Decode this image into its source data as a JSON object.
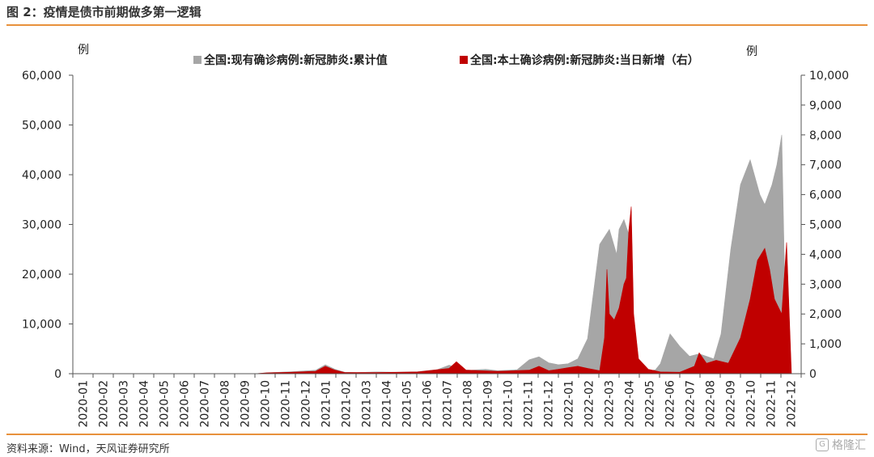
{
  "figure": {
    "title": "图 2：疫情是债市前期做多第一逻辑",
    "source": "资料来源：Wind，天风证券研究所",
    "watermark": "格隆汇"
  },
  "chart_data": {
    "type": "area",
    "xlabel": "",
    "ylabel_left": "例",
    "ylabel_right": "例",
    "ylim_left": [
      0,
      60000
    ],
    "ylim_right": [
      0,
      10000
    ],
    "yticks_left": [
      "0",
      "10,000",
      "20,000",
      "30,000",
      "40,000",
      "50,000",
      "60,000"
    ],
    "yticks_right": [
      "0",
      "1,000",
      "2,000",
      "3,000",
      "4,000",
      "5,000",
      "6,000",
      "7,000",
      "8,000",
      "9,000",
      "10,000"
    ],
    "grid": false,
    "legend_position": "top",
    "categories": [
      "2020-01",
      "2020-02",
      "2020-03",
      "2020-04",
      "2020-05",
      "2020-06",
      "2020-07",
      "2020-08",
      "2020-09",
      "2020-10",
      "2020-11",
      "2020-12",
      "2021-01",
      "2021-02",
      "2021-03",
      "2021-04",
      "2021-05",
      "2021-06",
      "2021-07",
      "2021-08",
      "2021-09",
      "2021-10",
      "2021-11",
      "2021-12",
      "2022-01",
      "2022-02",
      "2022-03",
      "2022-04",
      "2022-05",
      "2022-06",
      "2022-07",
      "2022-08",
      "2022-09",
      "2022-10",
      "2022-11",
      "2022-12"
    ],
    "series": [
      {
        "name": "全国:现有确诊病例:新冠肺炎:累计值",
        "axis": "left",
        "color": "#a6a6a6",
        "x": [
          2020.0,
          2020.75,
          2020.8,
          2020.9,
          2021.0,
          2021.04,
          2021.08,
          2021.12,
          2021.17,
          2021.25,
          2021.33,
          2021.42,
          2021.5,
          2021.55,
          2021.6,
          2021.64,
          2021.7,
          2021.75,
          2021.83,
          2021.88,
          2021.92,
          2021.96,
          2022.0,
          2022.04,
          2022.08,
          2022.12,
          2022.17,
          2022.21,
          2022.24,
          2022.25,
          2022.27,
          2022.29,
          2022.31,
          2022.33,
          2022.35,
          2022.37,
          2022.38,
          2022.4,
          2022.42,
          2022.46,
          2022.5,
          2022.54,
          2022.58,
          2022.61,
          2022.64,
          2022.67,
          2022.71,
          2022.75,
          2022.79,
          2022.83,
          2022.85,
          2022.88,
          2022.9,
          2022.92,
          2022.94,
          2022.96,
          2022.975,
          2022.99
        ],
        "values": [
          0,
          0,
          200,
          400,
          700,
          1800,
          900,
          300,
          250,
          350,
          300,
          400,
          800,
          1700,
          800,
          700,
          900,
          600,
          800,
          2800,
          3400,
          2200,
          1800,
          2000,
          3000,
          7000,
          26000,
          29000,
          24000,
          29000,
          31000,
          28000,
          8000,
          3000,
          900,
          700,
          600,
          800,
          2000,
          8000,
          5500,
          3500,
          4000,
          3500,
          3000,
          8000,
          25000,
          38000,
          43000,
          36000,
          34000,
          38000,
          42000,
          48000,
          0,
          0,
          0,
          0
        ]
      },
      {
        "name": "全国:本土确诊病例:新冠肺炎:当日新增（右）",
        "axis": "right",
        "color": "#c00000",
        "x": [
          2020.0,
          2020.75,
          2020.8,
          2020.9,
          2021.0,
          2021.04,
          2021.08,
          2021.12,
          2021.25,
          2021.42,
          2021.55,
          2021.58,
          2021.62,
          2021.75,
          2021.88,
          2021.92,
          2021.96,
          2022.0,
          2022.04,
          2022.08,
          2022.12,
          2022.17,
          2022.19,
          2022.2,
          2022.21,
          2022.23,
          2022.25,
          2022.27,
          2022.28,
          2022.29,
          2022.3,
          2022.31,
          2022.33,
          2022.37,
          2022.42,
          2022.5,
          2022.56,
          2022.58,
          2022.61,
          2022.65,
          2022.7,
          2022.75,
          2022.79,
          2022.82,
          2022.85,
          2022.87,
          2022.89,
          2022.92,
          2022.94,
          2022.96,
          2022.97,
          2022.98,
          2022.99
        ],
        "values": [
          0,
          0,
          30,
          50,
          80,
          250,
          120,
          40,
          40,
          60,
          180,
          400,
          120,
          80,
          120,
          250,
          100,
          150,
          200,
          250,
          180,
          100,
          1200,
          3500,
          2000,
          1800,
          2200,
          3000,
          3200,
          4800,
          5600,
          2000,
          500,
          150,
          60,
          50,
          250,
          700,
          350,
          450,
          350,
          1200,
          2500,
          3800,
          4200,
          3500,
          2500,
          2000,
          4400,
          0,
          0,
          0,
          0
        ]
      }
    ]
  }
}
